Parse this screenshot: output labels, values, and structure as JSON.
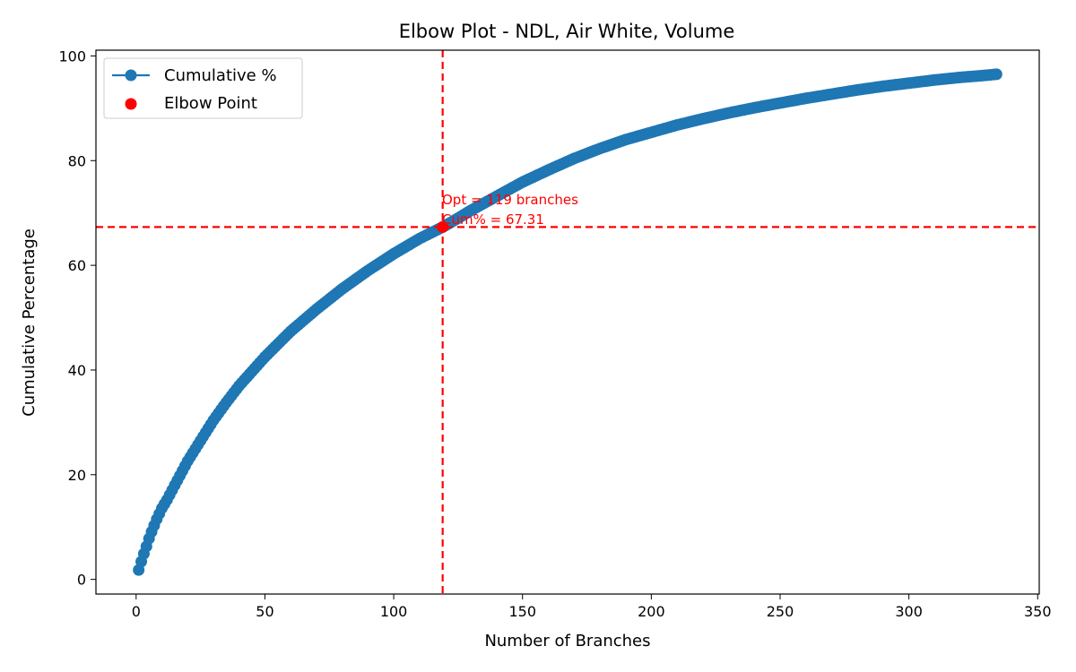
{
  "chart_data": {
    "type": "line",
    "title": "Elbow Plot - NDL, Air White, Volume",
    "xlabel": "Number of Branches",
    "ylabel": "Cumulative Percentage",
    "xlim": [
      -15.6,
      350.6
    ],
    "ylim": [
      -2.8,
      101.1
    ],
    "xticks": [
      0,
      50,
      100,
      150,
      200,
      250,
      300,
      350
    ],
    "yticks": [
      0,
      20,
      40,
      60,
      80,
      100
    ],
    "grid": false,
    "legend_position": "upper-left",
    "series": [
      {
        "name": "Cumulative %",
        "color": "#1f77b4",
        "marker": "circle",
        "x": [
          1,
          2,
          3,
          4,
          5,
          6,
          8,
          10,
          12,
          15,
          20,
          25,
          30,
          35,
          40,
          50,
          60,
          70,
          80,
          90,
          100,
          110,
          119,
          125,
          130,
          140,
          150,
          160,
          170,
          180,
          190,
          200,
          210,
          220,
          230,
          240,
          250,
          260,
          270,
          280,
          290,
          300,
          310,
          320,
          330,
          334
        ],
        "y": [
          1.8,
          3.4,
          4.9,
          6.3,
          7.8,
          9.1,
          11.5,
          13.6,
          15.2,
          18.0,
          22.6,
          26.5,
          30.4,
          33.8,
          37.0,
          42.5,
          47.4,
          51.6,
          55.5,
          59.0,
          62.2,
          65.1,
          67.31,
          69.0,
          70.5,
          73.2,
          75.9,
          78.2,
          80.4,
          82.3,
          84.0,
          85.4,
          86.8,
          88.0,
          89.1,
          90.1,
          91.0,
          91.9,
          92.7,
          93.5,
          94.2,
          94.8,
          95.4,
          95.9,
          96.3,
          96.5
        ]
      }
    ],
    "elbow": {
      "name": "Elbow Point",
      "x": 119,
      "y": 67.31,
      "color": "#ff0000",
      "annotation_line1": "Opt = 119 branches",
      "annotation_line2": "Cum% = 67.31"
    },
    "reference_lines": {
      "vertical_x": 119,
      "horizontal_y": 67.31,
      "color": "#ff0000",
      "style": "dashed"
    }
  }
}
